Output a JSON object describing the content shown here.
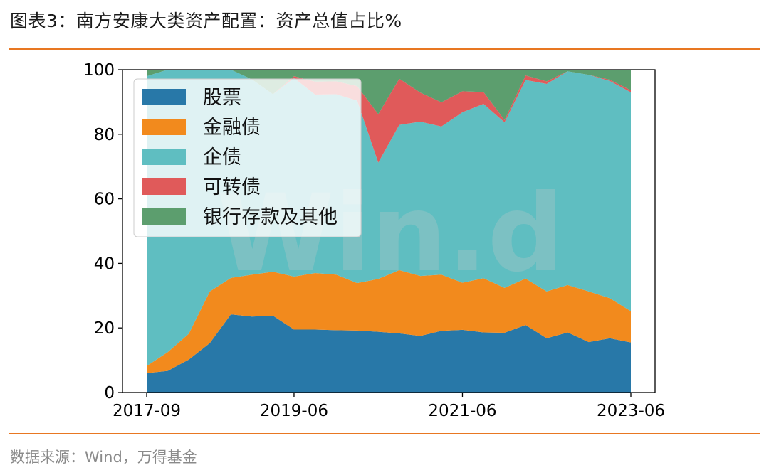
{
  "header": {
    "title": "图表3：南方安康大类资产配置：资产总值占比%"
  },
  "footer": {
    "source": "数据来源：Wind，万得基金"
  },
  "watermark": "Win.d",
  "chart_data": {
    "type": "area",
    "stacked": true,
    "title": "",
    "xlabel": "",
    "ylabel": "",
    "ylim": [
      0,
      100
    ],
    "yticks": [
      0,
      20,
      40,
      60,
      80,
      100
    ],
    "xticks": [
      "2017-09",
      "2019-06",
      "2021-06",
      "2023-06"
    ],
    "xtick_indices": [
      0,
      7,
      15,
      23
    ],
    "legend_position": "upper-left",
    "grid": false,
    "x": [
      "2017-09",
      "2017-12",
      "2018-03",
      "2018-06",
      "2018-09",
      "2018-12",
      "2019-03",
      "2019-06",
      "2019-09",
      "2019-12",
      "2020-03",
      "2020-06",
      "2020-09",
      "2020-12",
      "2021-03",
      "2021-06",
      "2021-09",
      "2021-12",
      "2022-03",
      "2022-06",
      "2022-09",
      "2022-12",
      "2023-03",
      "2023-06"
    ],
    "series": [
      {
        "name": "股票",
        "color": "#2878a8",
        "values": [
          6,
          6.7,
          10.2,
          15.3,
          24.2,
          23.5,
          23.8,
          19.5,
          19.5,
          19.3,
          19.2,
          18.8,
          18.3,
          17.5,
          19.1,
          19.4,
          18.6,
          18.5,
          20.9,
          16.8,
          18.6,
          15.6,
          16.8,
          15.5
        ]
      },
      {
        "name": "金融债",
        "color": "#f28a1d",
        "values": [
          2.2,
          5.8,
          8.0,
          16.0,
          11.3,
          13.0,
          13.6,
          16.4,
          17.5,
          17.2,
          14.7,
          16.4,
          19.6,
          18.6,
          17.4,
          14.6,
          16.8,
          13.9,
          14.4,
          14.5,
          14.7,
          15.7,
          12.4,
          9.7
        ]
      },
      {
        "name": "企债",
        "color": "#5fbec1",
        "values": [
          89.8,
          87.5,
          81.8,
          68.7,
          64.5,
          60.5,
          55.0,
          61.5,
          55.3,
          55.9,
          56.5,
          36.0,
          45.0,
          47.8,
          45.9,
          52.8,
          54.0,
          51.3,
          61.5,
          64.3,
          66.2,
          67.1,
          67.3,
          67.8
        ]
      },
      {
        "name": "可转债",
        "color": "#e05a5a",
        "values": [
          0,
          0,
          0,
          0,
          0,
          0,
          0,
          0.6,
          4.0,
          4.0,
          4.5,
          15.0,
          14.3,
          9.0,
          7.5,
          6.5,
          3.7,
          0.7,
          1.4,
          0.8,
          0,
          0,
          0.4,
          0.6
        ]
      },
      {
        "name": "银行存款及其他",
        "color": "#5c9e6e",
        "values": [
          2.0,
          0,
          0,
          0,
          0,
          3.0,
          7.6,
          2.0,
          3.7,
          3.6,
          5.1,
          13.8,
          2.8,
          7.1,
          10.1,
          6.7,
          6.9,
          15.6,
          1.8,
          3.6,
          0.5,
          1.6,
          3.1,
          6.4
        ]
      }
    ]
  }
}
